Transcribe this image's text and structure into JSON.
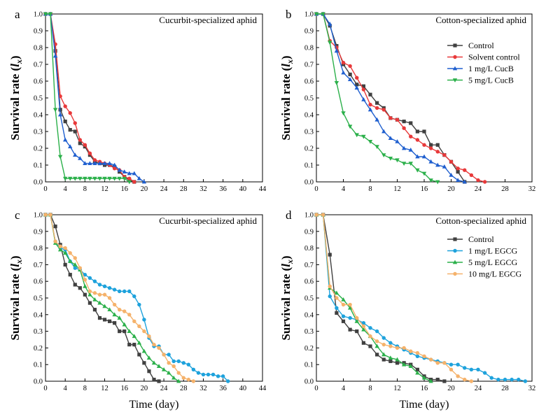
{
  "chart_data": [
    {
      "panel": "a",
      "type": "line",
      "title": "Cucurbit-specialized aphid",
      "xlabel": "",
      "ylabel": "Survival rate (lx)",
      "xlim": [
        0,
        44
      ],
      "ylim": [
        0,
        1.0
      ],
      "xticks": [
        0,
        4,
        8,
        12,
        16,
        20,
        24,
        28,
        32,
        36,
        40,
        44
      ],
      "yticks": [
        0.0,
        0.1,
        0.2,
        0.3,
        0.4,
        0.5,
        0.6,
        0.7,
        0.8,
        0.9,
        1.0
      ],
      "legend": false,
      "series": [
        {
          "name": "Control",
          "color": "#404040",
          "marker": "square",
          "x": [
            0,
            1,
            2,
            3,
            4,
            5,
            6,
            7,
            8,
            9,
            10,
            11,
            12,
            13,
            14,
            15,
            16,
            17,
            18
          ],
          "y": [
            1.0,
            1.0,
            0.78,
            0.43,
            0.36,
            0.31,
            0.3,
            0.23,
            0.21,
            0.16,
            0.12,
            0.11,
            0.1,
            0.1,
            0.09,
            0.06,
            0.03,
            0.01,
            0.0
          ]
        },
        {
          "name": "Solvent control",
          "color": "#e8393a",
          "marker": "circle",
          "x": [
            0,
            1,
            2,
            3,
            4,
            5,
            6,
            7,
            8,
            9,
            10,
            11,
            12,
            13,
            14,
            15,
            16,
            17,
            18
          ],
          "y": [
            1.0,
            1.0,
            0.82,
            0.51,
            0.45,
            0.41,
            0.35,
            0.25,
            0.22,
            0.17,
            0.13,
            0.12,
            0.11,
            0.1,
            0.08,
            0.07,
            0.03,
            0.02,
            0.0
          ]
        },
        {
          "name": "1 mg/L CucB",
          "color": "#1f5fcf",
          "marker": "triangle-up",
          "x": [
            0,
            1,
            2,
            3,
            4,
            5,
            6,
            7,
            8,
            9,
            10,
            11,
            12,
            13,
            14,
            15,
            16,
            17,
            18,
            19,
            20
          ],
          "y": [
            1.0,
            1.0,
            0.75,
            0.4,
            0.25,
            0.21,
            0.16,
            0.14,
            0.11,
            0.11,
            0.11,
            0.11,
            0.11,
            0.11,
            0.1,
            0.07,
            0.06,
            0.05,
            0.05,
            0.02,
            0.0
          ]
        },
        {
          "name": "5 mg/L CucB",
          "color": "#2bb04a",
          "marker": "triangle-down",
          "x": [
            0,
            1,
            2,
            3,
            4,
            5,
            6,
            7,
            8,
            9,
            10,
            11,
            12,
            13,
            14,
            15,
            16,
            17
          ],
          "y": [
            1.0,
            1.0,
            0.43,
            0.15,
            0.02,
            0.02,
            0.02,
            0.02,
            0.02,
            0.02,
            0.02,
            0.02,
            0.02,
            0.02,
            0.02,
            0.02,
            0.02,
            0.0
          ]
        }
      ]
    },
    {
      "panel": "b",
      "type": "line",
      "title": "Cotton-specialized aphid",
      "xlabel": "",
      "ylabel": "Survival rate (lx)",
      "xlim": [
        0,
        32
      ],
      "ylim": [
        0,
        1.0
      ],
      "xticks": [
        0,
        4,
        8,
        12,
        16,
        20,
        24,
        28,
        32
      ],
      "yticks": [
        0.0,
        0.1,
        0.2,
        0.3,
        0.4,
        0.5,
        0.6,
        0.7,
        0.8,
        0.9,
        1.0
      ],
      "legend": true,
      "series": [
        {
          "name": "Control",
          "color": "#404040",
          "marker": "square",
          "x": [
            0,
            1,
            2,
            3,
            4,
            5,
            6,
            7,
            8,
            9,
            10,
            11,
            12,
            13,
            14,
            15,
            16,
            17,
            18,
            19,
            20,
            21,
            22
          ],
          "y": [
            1.0,
            1.0,
            0.93,
            0.81,
            0.7,
            0.64,
            0.58,
            0.57,
            0.52,
            0.47,
            0.44,
            0.38,
            0.37,
            0.36,
            0.35,
            0.3,
            0.3,
            0.22,
            0.22,
            0.16,
            0.12,
            0.06,
            0.0
          ]
        },
        {
          "name": "Solvent control",
          "color": "#e8393a",
          "marker": "circle",
          "x": [
            0,
            1,
            2,
            3,
            4,
            5,
            6,
            7,
            8,
            9,
            10,
            11,
            12,
            13,
            14,
            15,
            16,
            17,
            18,
            19,
            20,
            21,
            22,
            23,
            24,
            25
          ],
          "y": [
            1.0,
            1.0,
            0.84,
            0.8,
            0.71,
            0.69,
            0.62,
            0.55,
            0.46,
            0.44,
            0.43,
            0.38,
            0.37,
            0.32,
            0.27,
            0.25,
            0.22,
            0.2,
            0.18,
            0.16,
            0.12,
            0.08,
            0.07,
            0.04,
            0.01,
            0.0
          ]
        },
        {
          "name": "1 mg/L CucB",
          "color": "#1f5fcf",
          "marker": "triangle-up",
          "x": [
            0,
            1,
            2,
            3,
            4,
            5,
            6,
            7,
            8,
            9,
            10,
            11,
            12,
            13,
            14,
            15,
            16,
            17,
            18,
            19,
            20,
            21,
            22
          ],
          "y": [
            1.0,
            1.0,
            0.94,
            0.78,
            0.65,
            0.61,
            0.56,
            0.49,
            0.43,
            0.37,
            0.3,
            0.26,
            0.24,
            0.2,
            0.19,
            0.15,
            0.15,
            0.12,
            0.1,
            0.09,
            0.04,
            0.01,
            0.0
          ]
        },
        {
          "name": "5 mg/L CucB",
          "color": "#2bb04a",
          "marker": "triangle-down",
          "x": [
            0,
            1,
            2,
            3,
            4,
            5,
            6,
            7,
            8,
            9,
            10,
            11,
            12,
            13,
            14,
            15,
            16,
            17,
            18
          ],
          "y": [
            1.0,
            1.0,
            0.83,
            0.59,
            0.41,
            0.33,
            0.28,
            0.27,
            0.24,
            0.21,
            0.16,
            0.14,
            0.13,
            0.11,
            0.11,
            0.07,
            0.05,
            0.01,
            0.0
          ]
        }
      ]
    },
    {
      "panel": "c",
      "type": "line",
      "title": "Cucurbit-specialized aphid",
      "xlabel": "Time (day)",
      "ylabel": "Survival rate (lx)",
      "xlim": [
        0,
        44
      ],
      "ylim": [
        0,
        1.0
      ],
      "xticks": [
        0,
        4,
        8,
        12,
        16,
        20,
        24,
        28,
        32,
        36,
        40,
        44
      ],
      "yticks": [
        0.0,
        0.1,
        0.2,
        0.3,
        0.4,
        0.5,
        0.6,
        0.7,
        0.8,
        0.9,
        1.0
      ],
      "legend": false,
      "series": [
        {
          "name": "Control",
          "color": "#404040",
          "marker": "square",
          "x": [
            0,
            1,
            2,
            3,
            4,
            5,
            6,
            7,
            8,
            9,
            10,
            11,
            12,
            13,
            14,
            15,
            16,
            17,
            18,
            19,
            20,
            21,
            22,
            23
          ],
          "y": [
            1.0,
            1.0,
            0.93,
            0.82,
            0.7,
            0.64,
            0.58,
            0.56,
            0.52,
            0.47,
            0.43,
            0.38,
            0.37,
            0.36,
            0.35,
            0.3,
            0.3,
            0.22,
            0.22,
            0.16,
            0.11,
            0.06,
            0.01,
            0.0
          ]
        },
        {
          "name": "1 mg/L EGCG",
          "color": "#1ea2dc",
          "marker": "circle",
          "x": [
            0,
            1,
            2,
            3,
            4,
            5,
            6,
            7,
            8,
            9,
            10,
            11,
            12,
            13,
            14,
            15,
            16,
            17,
            18,
            19,
            20,
            21,
            22,
            23,
            24,
            25,
            26,
            27,
            28,
            29,
            30,
            31,
            32,
            33,
            34,
            35,
            36,
            37
          ],
          "y": [
            1.0,
            1.0,
            0.84,
            0.8,
            0.79,
            0.72,
            0.68,
            0.67,
            0.64,
            0.62,
            0.6,
            0.58,
            0.57,
            0.56,
            0.55,
            0.54,
            0.54,
            0.54,
            0.51,
            0.46,
            0.37,
            0.26,
            0.21,
            0.21,
            0.16,
            0.16,
            0.12,
            0.12,
            0.11,
            0.1,
            0.07,
            0.05,
            0.04,
            0.04,
            0.04,
            0.03,
            0.03,
            0.0
          ]
        },
        {
          "name": "5 mg/L EGCG",
          "color": "#2bb04a",
          "marker": "triangle-up",
          "x": [
            0,
            1,
            2,
            3,
            4,
            5,
            6,
            7,
            8,
            9,
            10,
            11,
            12,
            13,
            14,
            15,
            16,
            17,
            18,
            19,
            20,
            21,
            22,
            23,
            24,
            25,
            26,
            27
          ],
          "y": [
            1.0,
            1.0,
            0.83,
            0.79,
            0.77,
            0.72,
            0.7,
            0.67,
            0.57,
            0.52,
            0.49,
            0.47,
            0.45,
            0.43,
            0.4,
            0.38,
            0.34,
            0.3,
            0.27,
            0.23,
            0.18,
            0.14,
            0.11,
            0.09,
            0.07,
            0.05,
            0.02,
            0.0
          ]
        },
        {
          "name": "10 mg/L EGCG",
          "color": "#f5b26b",
          "marker": "circle",
          "x": [
            0,
            1,
            2,
            3,
            4,
            5,
            6,
            7,
            8,
            9,
            10,
            11,
            12,
            13,
            14,
            15,
            16,
            17,
            18,
            19,
            20,
            21,
            22,
            23,
            24,
            25,
            26,
            27,
            28,
            29,
            30
          ],
          "y": [
            1.0,
            1.0,
            0.84,
            0.81,
            0.8,
            0.77,
            0.74,
            0.68,
            0.61,
            0.54,
            0.53,
            0.52,
            0.52,
            0.5,
            0.46,
            0.43,
            0.42,
            0.4,
            0.36,
            0.33,
            0.3,
            0.27,
            0.22,
            0.2,
            0.16,
            0.11,
            0.09,
            0.05,
            0.02,
            0.01,
            0.0
          ]
        }
      ]
    },
    {
      "panel": "d",
      "type": "line",
      "title": "Cotton-specialized aphid",
      "xlabel": "Time (day)",
      "ylabel": "Survival rate (lx)",
      "xlim": [
        0,
        32
      ],
      "ylim": [
        0,
        1.0
      ],
      "xticks": [
        0,
        4,
        8,
        12,
        16,
        20,
        24,
        28,
        32
      ],
      "yticks": [
        0.0,
        0.1,
        0.2,
        0.3,
        0.4,
        0.5,
        0.6,
        0.7,
        0.8,
        0.9,
        1.0
      ],
      "legend": true,
      "series": [
        {
          "name": "Control",
          "color": "#404040",
          "marker": "square",
          "x": [
            0,
            1,
            2,
            3,
            4,
            5,
            6,
            7,
            8,
            9,
            10,
            11,
            12,
            13,
            14,
            15,
            16,
            17,
            18,
            19
          ],
          "y": [
            1.0,
            1.0,
            0.76,
            0.41,
            0.36,
            0.31,
            0.3,
            0.23,
            0.21,
            0.16,
            0.13,
            0.12,
            0.11,
            0.11,
            0.1,
            0.07,
            0.03,
            0.01,
            0.01,
            0.0
          ]
        },
        {
          "name": "1 mg/L EGCG",
          "color": "#1ea2dc",
          "marker": "circle",
          "x": [
            0,
            1,
            2,
            3,
            4,
            5,
            6,
            7,
            8,
            9,
            10,
            11,
            12,
            13,
            14,
            15,
            16,
            17,
            18,
            19,
            20,
            21,
            22,
            23,
            24,
            25,
            26,
            27,
            28,
            29,
            30,
            31
          ],
          "y": [
            1.0,
            1.0,
            0.51,
            0.44,
            0.39,
            0.38,
            0.37,
            0.35,
            0.32,
            0.3,
            0.26,
            0.23,
            0.21,
            0.19,
            0.17,
            0.15,
            0.14,
            0.13,
            0.12,
            0.11,
            0.1,
            0.1,
            0.08,
            0.07,
            0.07,
            0.05,
            0.02,
            0.01,
            0.01,
            0.01,
            0.01,
            0.0
          ]
        },
        {
          "name": "5 mg/L EGCG",
          "color": "#2bb04a",
          "marker": "triangle-up",
          "x": [
            0,
            1,
            2,
            3,
            4,
            5,
            6,
            7,
            8,
            9,
            10,
            11,
            12,
            13,
            14,
            15,
            16,
            17
          ],
          "y": [
            1.0,
            1.0,
            0.56,
            0.53,
            0.49,
            0.44,
            0.36,
            0.31,
            0.27,
            0.21,
            0.16,
            0.14,
            0.13,
            0.1,
            0.09,
            0.05,
            0.02,
            0.0
          ]
        },
        {
          "name": "10 mg/L EGCG",
          "color": "#f5b26b",
          "marker": "circle",
          "x": [
            0,
            1,
            2,
            3,
            4,
            5,
            6,
            7,
            8,
            9,
            10,
            11,
            12,
            13,
            14,
            15,
            16,
            17,
            18,
            19,
            20,
            21,
            22,
            23
          ],
          "y": [
            1.0,
            1.0,
            0.57,
            0.5,
            0.46,
            0.46,
            0.38,
            0.33,
            0.27,
            0.24,
            0.22,
            0.21,
            0.2,
            0.2,
            0.18,
            0.17,
            0.15,
            0.13,
            0.11,
            0.11,
            0.07,
            0.03,
            0.01,
            0.0
          ]
        }
      ]
    }
  ]
}
